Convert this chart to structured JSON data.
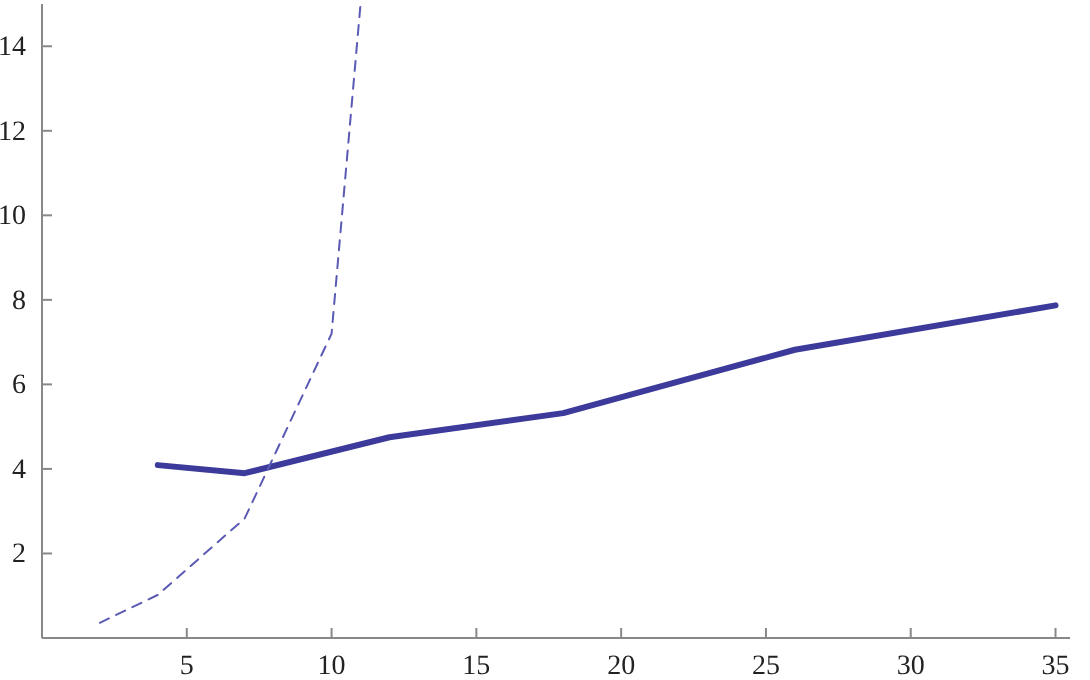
{
  "chart_data": {
    "type": "line",
    "xlim": [
      0,
      35.5
    ],
    "ylim": [
      0,
      15
    ],
    "xticks": [
      5,
      10,
      15,
      20,
      25,
      30,
      35
    ],
    "yticks": [
      2,
      4,
      6,
      8,
      10,
      12,
      14
    ],
    "series": [
      {
        "color": "#3c3a9a",
        "line_style": "solid",
        "x": [
          4,
          7,
          12,
          18,
          26,
          35
        ],
        "values": [
          4.09,
          3.9,
          4.75,
          5.32,
          6.82,
          7.87
        ]
      },
      {
        "color": "#5a5ab4",
        "line_style": "dashed",
        "x": [
          2,
          4,
          7,
          10,
          11
        ],
        "values": [
          0.36,
          1.02,
          2.83,
          7.2,
          15
        ]
      }
    ]
  }
}
